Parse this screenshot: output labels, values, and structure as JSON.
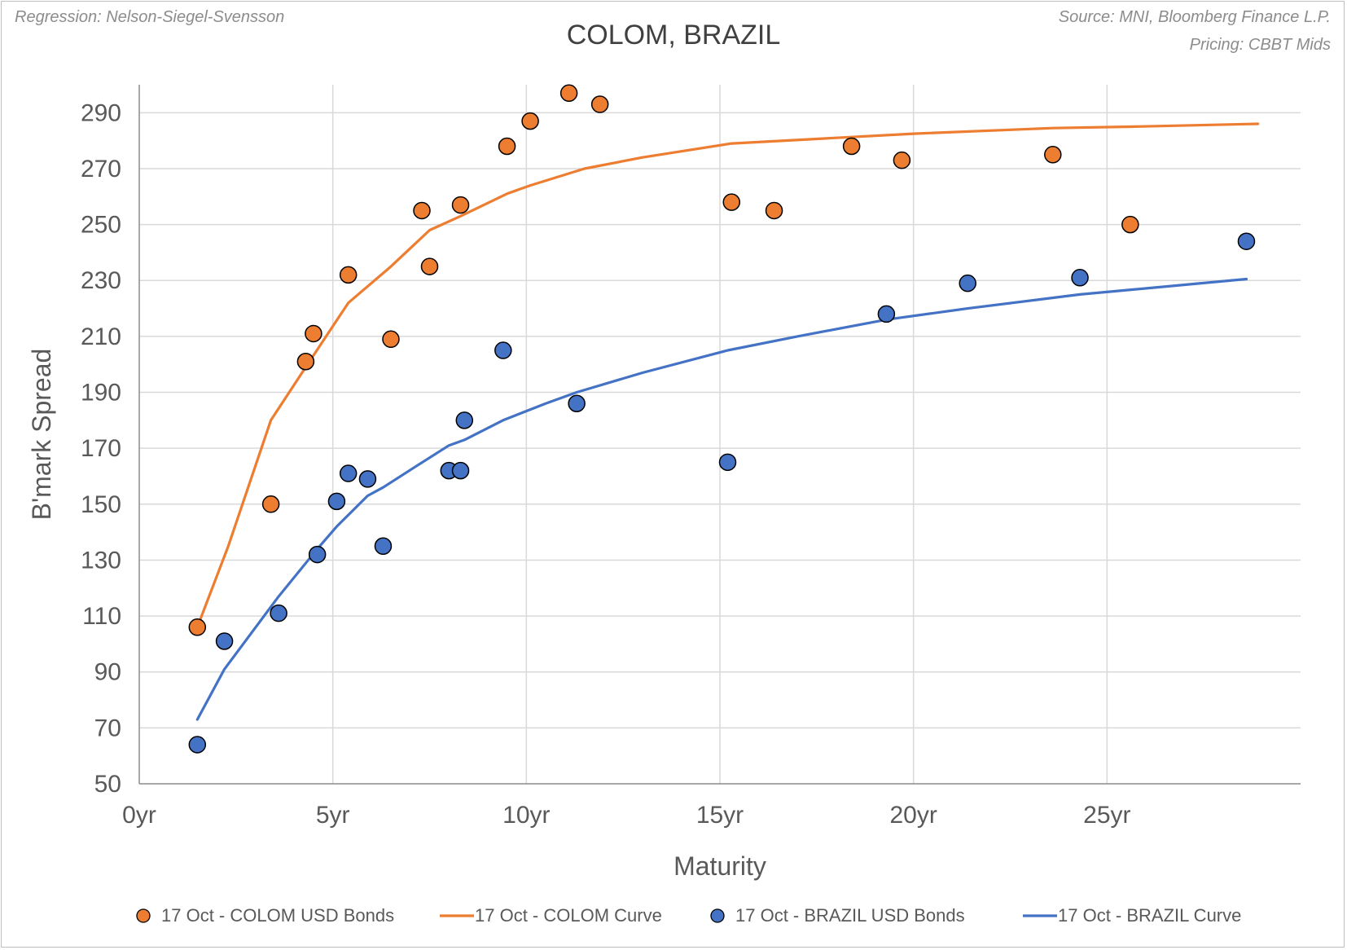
{
  "notes": {
    "regression": "Regression: Nelson-Siegel-Svensson",
    "source": "Source: MNI, Bloomberg Finance L.P.",
    "pricing": "Pricing: CBBT Mids"
  },
  "chart_data": {
    "type": "scatter",
    "title": "COLOM, BRAZIL",
    "xlabel": "Maturity",
    "ylabel": "B'mark Spread",
    "xlim": [
      0,
      30
    ],
    "ylim": [
      50,
      300
    ],
    "x_ticks": [
      0,
      5,
      10,
      15,
      20,
      25
    ],
    "x_tick_labels": [
      "0yr",
      "5yr",
      "10yr",
      "15yr",
      "20yr",
      "25yr"
    ],
    "y_ticks": [
      50,
      70,
      90,
      110,
      130,
      150,
      170,
      190,
      210,
      230,
      250,
      270,
      290
    ],
    "y_tick_labels": [
      "50",
      "70",
      "90",
      "110",
      "130",
      "150",
      "170",
      "190",
      "210",
      "230",
      "250",
      "270",
      "290"
    ],
    "grid": true,
    "legend_position": "bottom",
    "series": [
      {
        "name": "17 Oct - COLOM  USD Bonds",
        "kind": "points",
        "color": "#ED7D31",
        "points": [
          [
            1.5,
            106
          ],
          [
            3.4,
            150
          ],
          [
            4.3,
            201
          ],
          [
            4.5,
            211
          ],
          [
            5.4,
            232
          ],
          [
            6.5,
            209
          ],
          [
            7.3,
            255
          ],
          [
            7.5,
            235
          ],
          [
            8.3,
            257
          ],
          [
            9.5,
            278
          ],
          [
            10.1,
            287
          ],
          [
            11.1,
            297
          ],
          [
            11.9,
            293
          ],
          [
            15.3,
            258
          ],
          [
            16.4,
            255
          ],
          [
            18.4,
            278
          ],
          [
            19.7,
            273
          ],
          [
            23.6,
            275
          ],
          [
            25.6,
            250
          ]
        ]
      },
      {
        "name": "17 Oct - COLOM Curve",
        "kind": "line",
        "color": "#ED7D31",
        "points": [
          [
            1.5,
            106
          ],
          [
            2.3,
            135
          ],
          [
            3.4,
            180
          ],
          [
            4.3,
            199
          ],
          [
            5.4,
            222
          ],
          [
            6.5,
            235
          ],
          [
            7.5,
            248
          ],
          [
            8.3,
            253
          ],
          [
            9.5,
            261
          ],
          [
            10.1,
            264
          ],
          [
            11.5,
            270
          ],
          [
            13,
            274
          ],
          [
            15.3,
            279
          ],
          [
            18,
            281
          ],
          [
            20,
            282.5
          ],
          [
            23.6,
            284.5
          ],
          [
            25.6,
            285
          ],
          [
            28.9,
            286
          ]
        ]
      },
      {
        "name": "17 Oct - BRAZIL  USD Bonds",
        "kind": "points",
        "color": "#4472C4",
        "points": [
          [
            1.5,
            64
          ],
          [
            2.2,
            101
          ],
          [
            3.6,
            111
          ],
          [
            4.6,
            132
          ],
          [
            5.1,
            151
          ],
          [
            5.4,
            161
          ],
          [
            5.9,
            159
          ],
          [
            6.3,
            135
          ],
          [
            8.0,
            162
          ],
          [
            8.3,
            162
          ],
          [
            8.4,
            180
          ],
          [
            9.4,
            205
          ],
          [
            11.3,
            186
          ],
          [
            15.2,
            165
          ],
          [
            19.3,
            218
          ],
          [
            21.4,
            229
          ],
          [
            24.3,
            231
          ],
          [
            28.6,
            244
          ]
        ]
      },
      {
        "name": "17 Oct - BRAZIL Curve",
        "kind": "line",
        "color": "#4472C4",
        "points": [
          [
            1.5,
            73
          ],
          [
            2.2,
            91
          ],
          [
            3.6,
            117
          ],
          [
            4.6,
            134
          ],
          [
            5.1,
            142
          ],
          [
            5.9,
            153
          ],
          [
            6.3,
            156
          ],
          [
            7.2,
            164
          ],
          [
            8.0,
            171
          ],
          [
            8.4,
            173
          ],
          [
            9.4,
            180
          ],
          [
            10.5,
            186
          ],
          [
            11.3,
            190
          ],
          [
            13,
            197
          ],
          [
            15.2,
            205
          ],
          [
            17,
            210
          ],
          [
            19.3,
            216
          ],
          [
            21.4,
            220
          ],
          [
            24.3,
            225
          ],
          [
            28.6,
            230.5
          ]
        ]
      }
    ]
  }
}
